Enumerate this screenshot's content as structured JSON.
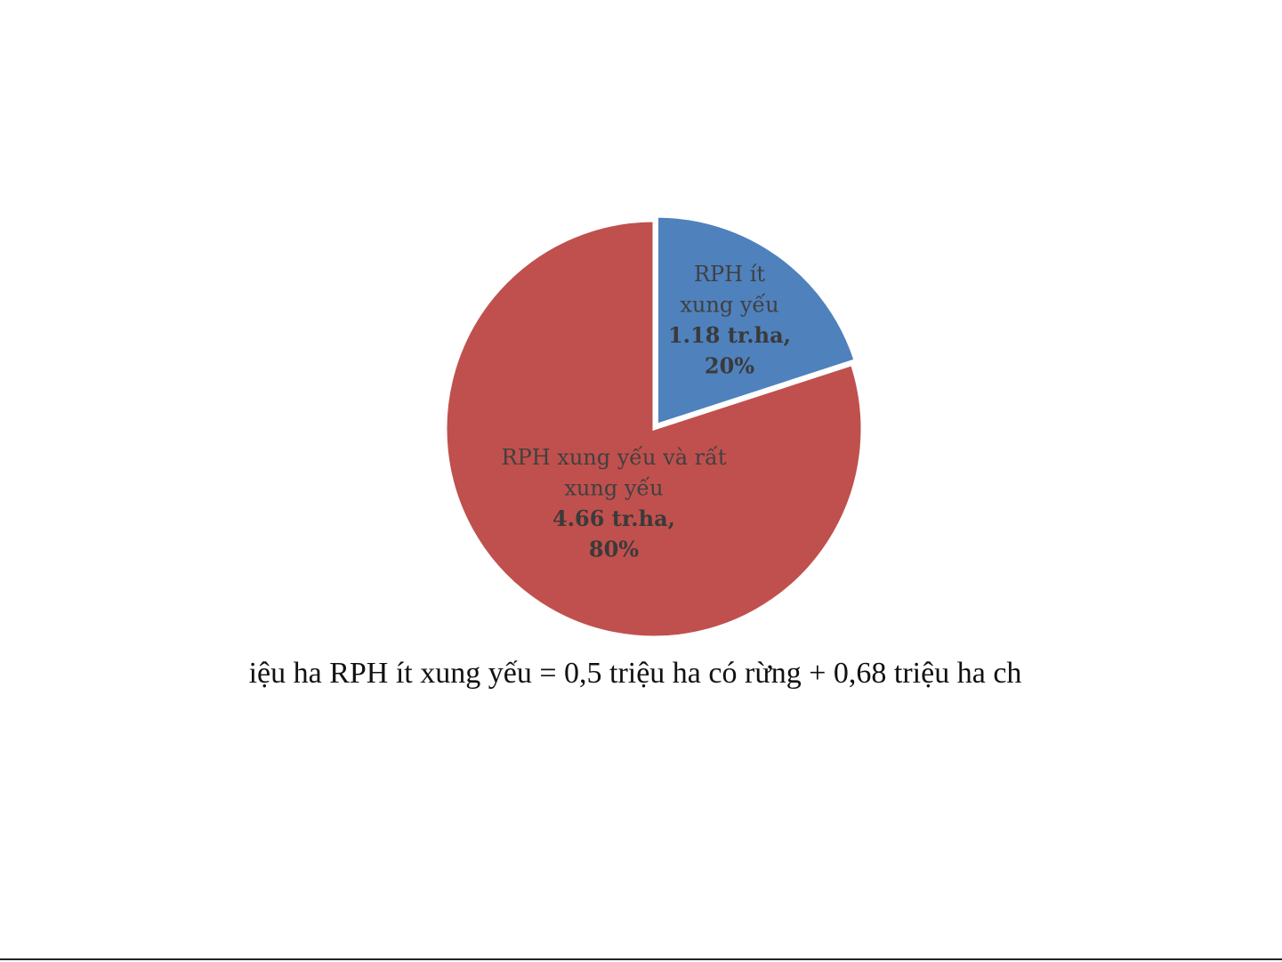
{
  "chart_data": {
    "type": "pie",
    "slices": [
      {
        "label_lines": [
          "RPH ít",
          "xung yếu"
        ],
        "value_text": "1.18 tr.ha,",
        "percent_text": "20%",
        "value": 1.18,
        "percent": 20,
        "color": "#4f81bd"
      },
      {
        "label_lines": [
          "RPH xung yếu và rất",
          "xung yếu"
        ],
        "value_text": "4.66 tr.ha,",
        "percent_text": "80%",
        "value": 4.66,
        "percent": 80,
        "color": "#c0504d"
      }
    ],
    "start_angle": "12 o'clock",
    "direction": "clockwise",
    "exploded_slice": 0,
    "legend": "none"
  },
  "caption": "iệu ha RPH ít xung yếu = 0,5 triệu ha có rừng + 0,68 triệu ha ch"
}
